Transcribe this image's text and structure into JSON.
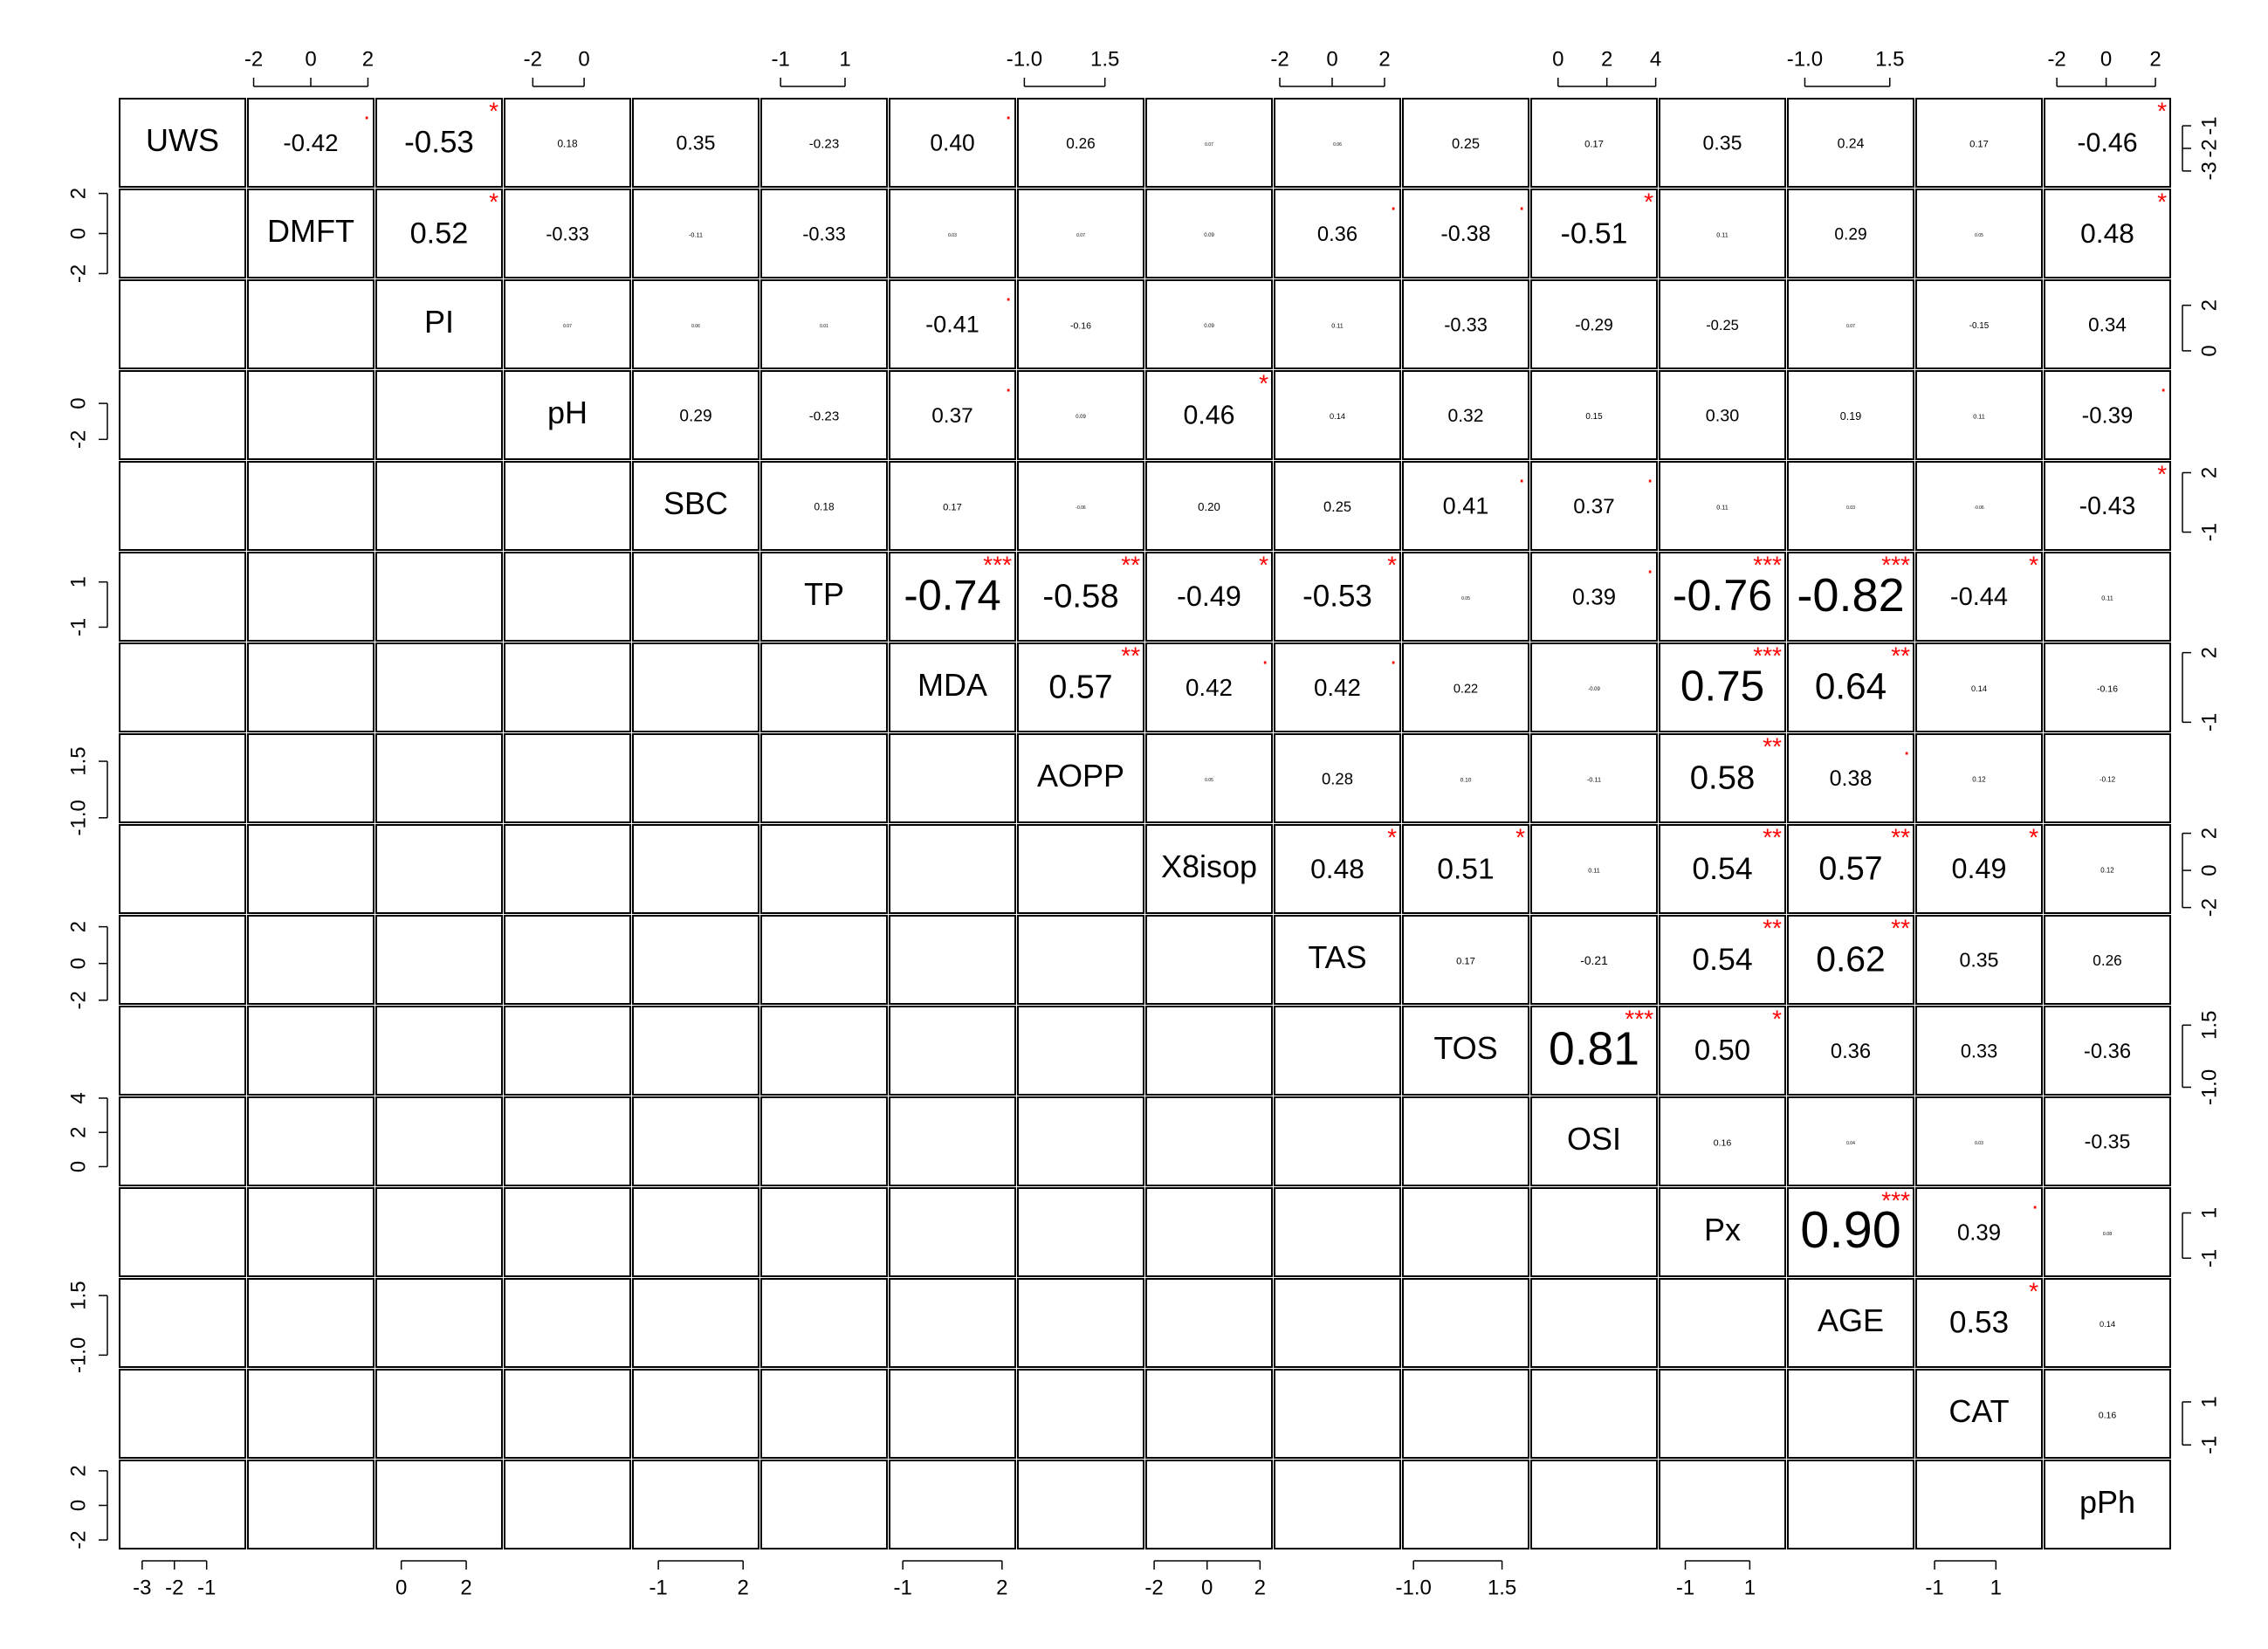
{
  "chart_data": {
    "type": "pairs",
    "star_color": "#ff0000",
    "variables": [
      {
        "name": "UWS",
        "lim": [
          -3.7,
          0.2
        ],
        "ticks": [
          -3,
          -2,
          -1
        ]
      },
      {
        "name": "DMFT",
        "lim": [
          -2.2,
          2.2
        ],
        "ticks": [
          -2,
          0,
          2
        ]
      },
      {
        "name": "PI",
        "lim": [
          -0.77,
          3.1
        ],
        "ticks": [
          2,
          0
        ]
      },
      {
        "name": "pH",
        "lim": [
          -3.1,
          1.8
        ],
        "ticks": [
          -2,
          0
        ]
      },
      {
        "name": "SBC",
        "lim": [
          -1.9,
          2.55
        ],
        "ticks": [
          2,
          -1
        ]
      },
      {
        "name": "TP",
        "lim": [
          -1.6,
          2.3
        ],
        "ticks": [
          -1,
          1
        ]
      },
      {
        "name": "MDA",
        "lim": [
          -1.4,
          2.4
        ],
        "ticks": [
          2,
          -1
        ]
      },
      {
        "name": "AOPP",
        "lim": [
          -1.2,
          2.7
        ],
        "ticks": [
          {
            "value": -1,
            "label": "-1.0"
          },
          {
            "value": 1.5,
            "label": "1.5"
          }
        ]
      },
      {
        "name": "X8isop",
        "lim": [
          -2.3,
          2.45
        ],
        "ticks": [
          -2,
          0,
          2
        ]
      },
      {
        "name": "TAS",
        "lim": [
          -2.2,
          2.6
        ],
        "ticks": [
          -2,
          0,
          2
        ]
      },
      {
        "name": "TOS",
        "lim": [
          -1.3,
          2.25
        ],
        "ticks": [
          {
            "value": -1,
            "label": "-1.0"
          },
          {
            "value": 1.5,
            "label": "1.5"
          }
        ]
      },
      {
        "name": "OSI",
        "lim": [
          -1.1,
          4.05
        ],
        "ticks": [
          0,
          2,
          4
        ]
      },
      {
        "name": "Px",
        "lim": [
          -1.8,
          2.1
        ],
        "ticks": [
          -1,
          1
        ]
      },
      {
        "name": "AGE",
        "lim": [
          -1.5,
          2.2
        ],
        "ticks": [
          {
            "value": -1,
            "label": "-1.0"
          },
          {
            "value": 1.5,
            "label": "1.5"
          }
        ]
      },
      {
        "name": "CAT",
        "lim": [
          -1.6,
          2.5
        ],
        "ticks": [
          -1,
          1
        ]
      },
      {
        "name": "pPh",
        "lim": [
          -2.5,
          2.6
        ],
        "ticks": [
          -2,
          0,
          2
        ]
      }
    ],
    "correlations": [
      [
        "-0.42",
        "-0.53",
        "0.18",
        "0.35",
        "-0.23",
        "0.40",
        "0.26",
        "0.07",
        "0.06",
        "0.25",
        "0.17",
        "0.35",
        "0.24",
        "0.17",
        "-0.46"
      ],
      [
        "0.52",
        "-0.33",
        "-0.11",
        "-0.33",
        "0.03",
        "0.07",
        "0.09",
        "0.36",
        "-0.38",
        "-0.51",
        "0.11",
        "0.29",
        "0.05",
        "0.48"
      ],
      [
        "0.07",
        "0.06",
        "0.01",
        "-0.41",
        "-0.16",
        "0.09",
        "0.11",
        "-0.33",
        "-0.29",
        "-0.25",
        "0.07",
        "-0.15",
        "0.34"
      ],
      [
        "0.29",
        "-0.23",
        "0.37",
        "0.09",
        "0.46",
        "0.14",
        "0.32",
        "0.15",
        "0.30",
        "0.19",
        "0.11",
        "-0.39"
      ],
      [
        "0.18",
        "0.17",
        "-0.06",
        "0.20",
        "0.25",
        "0.41",
        "0.37",
        "0.11",
        "0.03",
        "-0.06",
        "-0.43"
      ],
      [
        "-0.74",
        "-0.58",
        "-0.49",
        "-0.53",
        "0.05",
        "0.39",
        "-0.76",
        "-0.82",
        "-0.44",
        "0.11"
      ],
      [
        "0.57",
        "0.42",
        "0.42",
        "0.22",
        "-0.09",
        "0.75",
        "0.64",
        "0.14",
        "-0.16"
      ],
      [
        "0.05",
        "0.28",
        "0.10",
        "-0.11",
        "0.58",
        "0.38",
        "0.12",
        "-0.12"
      ],
      [
        "0.48",
        "0.51",
        "0.11",
        "0.54",
        "0.57",
        "0.49",
        "0.12"
      ],
      [
        "0.17",
        "-0.21",
        "0.54",
        "0.62",
        "0.35",
        "0.26"
      ],
      [
        "0.81",
        "0.50",
        "0.36",
        "0.33",
        "-0.36"
      ],
      [
        "0.16",
        "0.04",
        "0.03",
        "-0.35"
      ],
      [
        "0.90",
        "0.39",
        "0.08"
      ],
      [
        "0.53",
        "0.14"
      ],
      [
        "0.16"
      ]
    ],
    "stars": [
      [
        ".",
        "*",
        null,
        null,
        null,
        ".",
        null,
        null,
        null,
        null,
        null,
        null,
        null,
        null,
        "*"
      ],
      [
        "*",
        null,
        null,
        null,
        null,
        null,
        null,
        ".",
        ".",
        "*",
        null,
        null,
        null,
        "*"
      ],
      [
        null,
        null,
        null,
        ".",
        null,
        null,
        null,
        null,
        null,
        null,
        null,
        null,
        null
      ],
      [
        null,
        null,
        ".",
        null,
        "*",
        null,
        null,
        null,
        null,
        null,
        null,
        "."
      ],
      [
        null,
        null,
        null,
        null,
        null,
        ".",
        ".",
        null,
        null,
        null,
        "*"
      ],
      [
        "***",
        "**",
        "*",
        "*",
        null,
        ".",
        "***",
        "***",
        "*",
        null
      ],
      [
        "**",
        ".",
        ".",
        null,
        null,
        "***",
        "**",
        null,
        null
      ],
      [
        null,
        null,
        null,
        null,
        "**",
        ".",
        null,
        null
      ],
      [
        "*",
        "*",
        null,
        "**",
        "**",
        "*",
        null
      ],
      [
        null,
        null,
        "**",
        "**",
        null,
        null
      ],
      [
        "***",
        "*",
        null,
        null,
        null
      ],
      [
        null,
        null,
        null,
        null
      ],
      [
        "***",
        ".",
        null
      ],
      [
        "*",
        null
      ],
      [
        null
      ]
    ]
  }
}
